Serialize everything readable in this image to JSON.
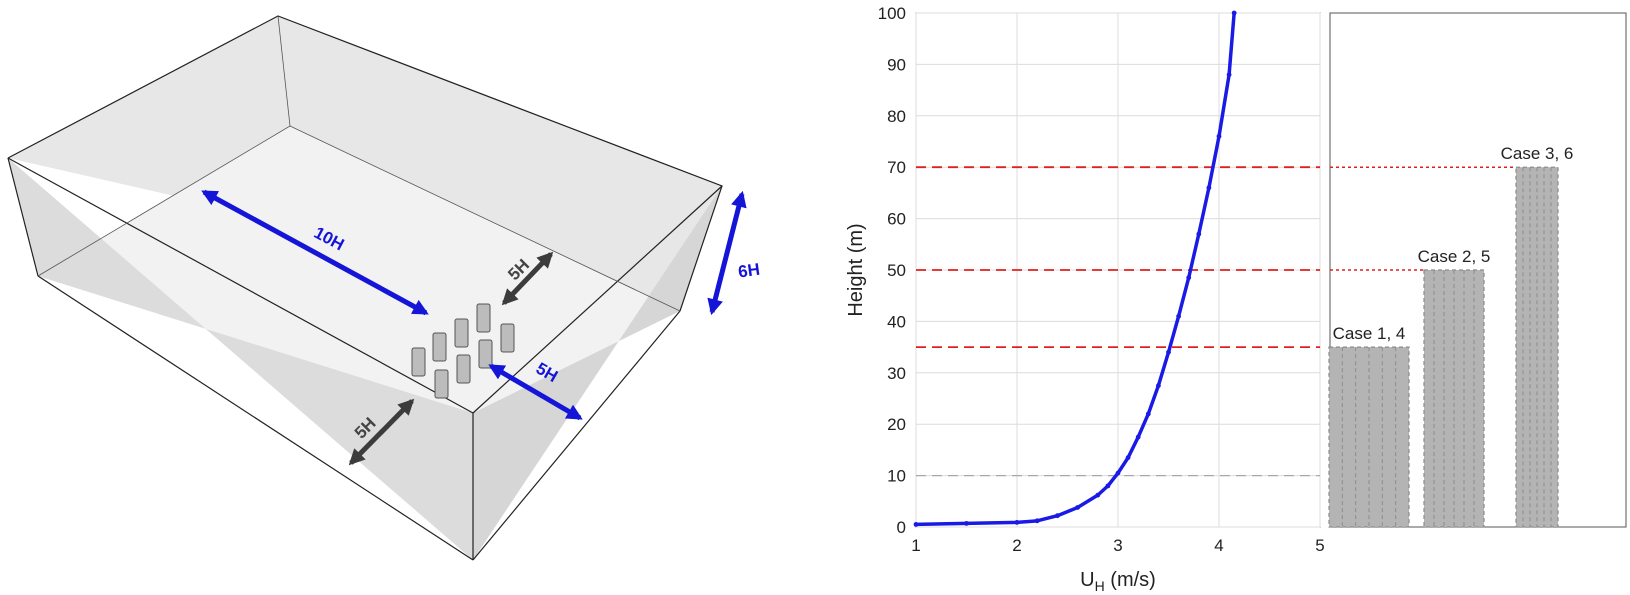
{
  "domain_diagram": {
    "dimension_labels": {
      "upstream": "10H",
      "height": "6H",
      "lateral_right": "5H",
      "lateral_left": "5H",
      "downstream": "5H"
    },
    "colors": {
      "blue_arrow": "#1515d8",
      "dark_arrow": "#3c3c3c",
      "box_fill": "#e6e6e6",
      "floor_fill": "#f1f1f1"
    }
  },
  "chart_data": [
    {
      "type": "line",
      "xlabel_main": "U",
      "xlabel_sub": "H",
      "xlabel_unit": " (m/s)",
      "ylabel": "Height (m)",
      "xlim": [
        1,
        5
      ],
      "ylim": [
        0,
        100
      ],
      "x_ticks": [
        "1",
        "2",
        "3",
        "4",
        "5"
      ],
      "y_ticks": [
        "0",
        "10",
        "20",
        "30",
        "40",
        "50",
        "60",
        "70",
        "80",
        "90",
        "100"
      ],
      "grid": true,
      "series": [
        {
          "color": "#1a1ae6",
          "x": [
            1.0,
            1.5,
            2.0,
            2.2,
            2.4,
            2.6,
            2.8,
            2.9,
            3.0,
            3.1,
            3.2,
            3.3,
            3.4,
            3.5,
            3.6,
            3.7,
            3.8,
            3.9,
            4.0,
            4.1,
            4.15
          ],
          "y": [
            0.5,
            0.7,
            0.9,
            1.2,
            2.2,
            3.8,
            6.2,
            8.0,
            10.5,
            13.5,
            17.5,
            22.0,
            27.5,
            34.0,
            41.0,
            48.5,
            57.0,
            66.0,
            76.0,
            88.0,
            100.0
          ]
        }
      ],
      "reference_lines": [
        {
          "y": 70,
          "color": "#e02020",
          "style": "dashed"
        },
        {
          "y": 50,
          "color": "#e02020",
          "style": "dashed"
        },
        {
          "y": 35,
          "color": "#e02020",
          "style": "dashed"
        },
        {
          "y": 10,
          "color": "#a8a8a8",
          "style": "dashed"
        }
      ]
    },
    {
      "type": "bar",
      "categories": [
        "Case 1, 4",
        "Case 2, 5",
        "Case 3, 6"
      ],
      "values": [
        35,
        50,
        70
      ],
      "ylim": [
        0,
        100
      ],
      "bar_color": "#b4b4b4"
    }
  ]
}
